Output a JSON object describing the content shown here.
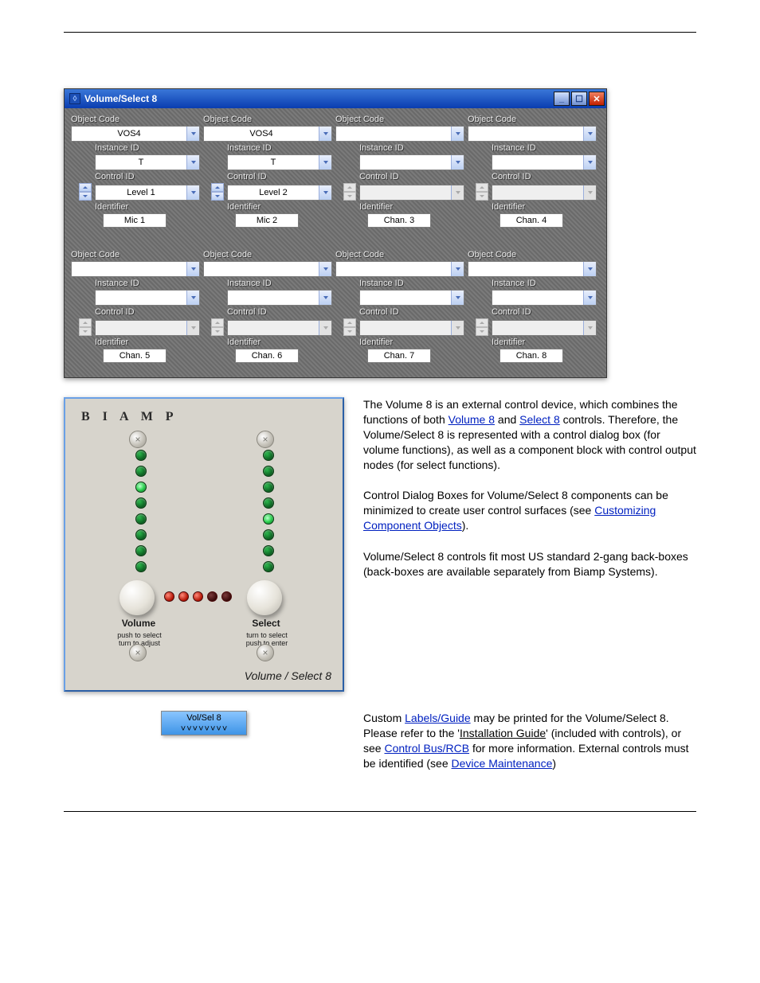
{
  "window1": {
    "title": "Volume/Select 8",
    "channels": [
      {
        "objectCode": "VOS4",
        "instanceID": "T",
        "controlID": "Level 1",
        "identifier": "Mic 1",
        "enabled": true
      },
      {
        "objectCode": "VOS4",
        "instanceID": "T",
        "controlID": "Level 2",
        "identifier": "Mic 2",
        "enabled": true
      },
      {
        "objectCode": "",
        "instanceID": "",
        "controlID": "",
        "identifier": "Chan. 3",
        "enabled": false
      },
      {
        "objectCode": "",
        "instanceID": "",
        "controlID": "",
        "identifier": "Chan. 4",
        "enabled": false
      },
      {
        "objectCode": "",
        "instanceID": "",
        "controlID": "",
        "identifier": "Chan. 5",
        "enabled": false
      },
      {
        "objectCode": "",
        "instanceID": "",
        "controlID": "",
        "identifier": "Chan. 6",
        "enabled": false
      },
      {
        "objectCode": "",
        "instanceID": "",
        "controlID": "",
        "identifier": "Chan. 7",
        "enabled": false
      },
      {
        "objectCode": "",
        "instanceID": "",
        "controlID": "",
        "identifier": "Chan. 8",
        "enabled": false
      }
    ],
    "labels": {
      "objectCode": "Object Code",
      "instanceID": "Instance ID",
      "controlID": "Control ID",
      "identifier": "Identifier"
    }
  },
  "panel": {
    "brand": "B I A M P",
    "leftLEDs": [
      false,
      false,
      true,
      false,
      false,
      false,
      false,
      false
    ],
    "rightLEDs": [
      false,
      false,
      false,
      false,
      true,
      false,
      false,
      false
    ],
    "meter": [
      "red",
      "red",
      "red",
      "dark",
      "dark"
    ],
    "volumeLabel": "Volume",
    "selectLabel": "Select",
    "volumeSub": "push to select\nturn to adjust",
    "selectSub": "turn to select\npush to enter",
    "title": "Volume / Select 8"
  },
  "vs8": {
    "label": "Vol/Sel 8",
    "ports": 8
  },
  "text": {
    "p1a": "The Volume 8 is an external control device, which combines the functions of both ",
    "p1link1": "Volume 8",
    "p1b": " and ",
    "p1link2": "Select 8",
    "p1c": " controls. Therefore, the Volume/Select 8 is represented with a control dialog box (for volume functions), as well as a component block with control output nodes (for select functions).",
    "p2a": "Control Dialog Boxes for Volume/Select 8 components can be minimized to create user control surfaces (see ",
    "p2link": "Customizing Component Objects",
    "p2b": ").",
    "p3": "Volume/Select 8 controls fit most US standard 2-gang back-boxes (back-boxes are available separately from Biamp Systems).",
    "p4a": "Custom ",
    "p4link1": "Labels/Guide",
    "p4b": " may be printed for the Volume/Select 8. Please refer to the '",
    "p4u": "Installation Guide",
    "p4c": "' (included with controls), or see ",
    "p4link2": "Control Bus/RCB",
    "p4d": " for more information. External controls must be identified (see ",
    "p4link3": "Device Maintenance",
    "p4e": ")"
  },
  "colors": {
    "titlebarFrom": "#3a77d8",
    "titlebarTo": "#0a3db0",
    "win1bg": "#6a6a6a",
    "panelBg": "#d7d4cc",
    "borderLight": "#6aa0e6",
    "borderDark": "#2b5fa6",
    "ledOn": "#36d858",
    "ledOff": "#0a5a1e",
    "meterRed": "#b01000",
    "meterDark": "#3a0a0a",
    "vs8From": "#8ac5ff",
    "vs8To": "#3e94e6",
    "link": "#0020c0"
  }
}
